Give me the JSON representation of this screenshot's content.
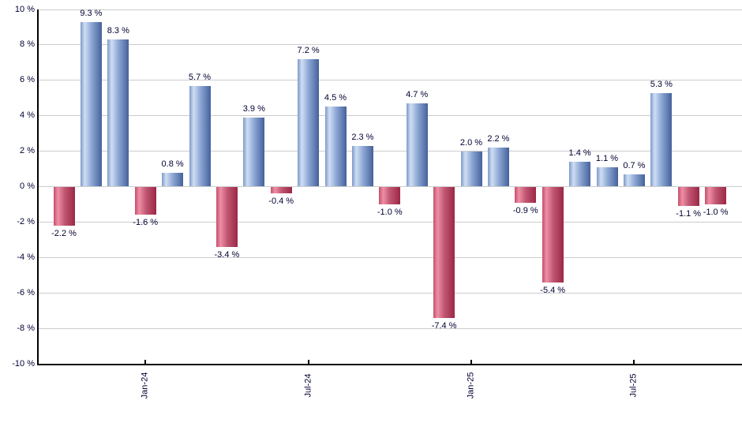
{
  "chart": {
    "background_color": "#ffffff",
    "grid_color": "#cccccc",
    "axis_color": "#000000",
    "text_color": "#000033",
    "positive_bar_color": "#6e8fc4",
    "negative_bar_color": "#c24a68"
  },
  "chart_data": {
    "type": "bar",
    "title": "",
    "xlabel": "",
    "ylabel": "",
    "ylim": [
      -10,
      10
    ],
    "y_tick_step": 2,
    "grid": "horizontal",
    "legend_position": "none",
    "y_tick_labels": [
      "10 %",
      "8 %",
      "6 %",
      "4 %",
      "2 %",
      "0 %",
      "-2 %",
      "-4 %",
      "-6 %",
      "-8 %",
      "-10 %"
    ],
    "values": [
      -2.2,
      9.3,
      8.3,
      -1.6,
      0.8,
      5.7,
      -3.4,
      3.9,
      -0.4,
      7.2,
      4.5,
      2.3,
      -1.0,
      4.7,
      -7.4,
      2.0,
      2.2,
      -0.9,
      -5.4,
      1.4,
      1.1,
      0.7,
      5.3,
      -1.1,
      -1.0
    ],
    "bar_labels": [
      "-2.2 %",
      "9.3 %",
      "8.3 %",
      "-1.6 %",
      "0.8 %",
      "5.7 %",
      "-3.4 %",
      "3.9 %",
      "-0.4 %",
      "7.2 %",
      "4.5 %",
      "2.3 %",
      "-1.0 %",
      "4.7 %",
      "-7.4 %",
      "2.0 %",
      "2.2 %",
      "-0.9 %",
      "-5.4 %",
      "1.4 %",
      "1.1 %",
      "0.7 %",
      "5.3 %",
      "-1.1 %",
      "-1.0 %"
    ],
    "x_tick_labels": [
      {
        "label": "Jan-24",
        "bar_index": 3
      },
      {
        "label": "Jul-24",
        "bar_index": 9
      },
      {
        "label": "Jan-25",
        "bar_index": 15
      },
      {
        "label": "Jul-25",
        "bar_index": 21
      }
    ]
  }
}
